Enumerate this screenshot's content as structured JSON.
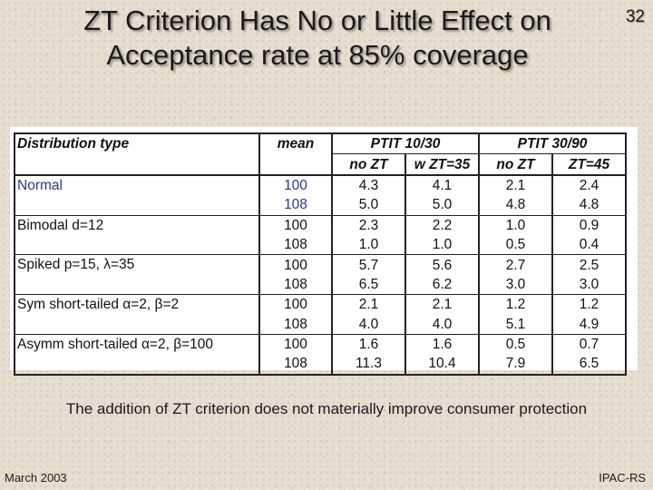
{
  "slide": {
    "title_line1": "ZT Criterion Has No or Little Effect on",
    "title_line2": "Acceptance rate at 85% coverage",
    "page_number": "32",
    "caption": "The addition of ZT criterion does not materially improve consumer protection",
    "footer_left": "March 2003",
    "footer_right": "IPAC-RS"
  },
  "table": {
    "header": {
      "distribution": "Distribution type",
      "mean": "mean",
      "group1": "PTIT 10/30",
      "group2": "PTIT 30/90",
      "sub": [
        "no ZT",
        "w ZT=35",
        "no ZT",
        "ZT=45"
      ]
    },
    "groups": [
      {
        "label": "Normal",
        "rows": [
          [
            "100",
            "4.3",
            "4.1",
            "2.1",
            "2.4"
          ],
          [
            "108",
            "5.0",
            "5.0",
            "4.8",
            "4.8"
          ]
        ]
      },
      {
        "label": "Bimodal d=12",
        "rows": [
          [
            "100",
            "2.3",
            "2.2",
            "1.0",
            "0.9"
          ],
          [
            "108",
            "1.0",
            "1.0",
            "0.5",
            "0.4"
          ]
        ]
      },
      {
        "label": "Spiked p=15, λ=35",
        "rows": [
          [
            "100",
            "5.7",
            "5.6",
            "2.7",
            "2.5"
          ],
          [
            "108",
            "6.5",
            "6.2",
            "3.0",
            "3.0"
          ]
        ]
      },
      {
        "label": "Sym short-tailed α=2, β=2",
        "rows": [
          [
            "100",
            "2.1",
            "2.1",
            "1.2",
            "1.2"
          ],
          [
            "108",
            "4.0",
            "4.0",
            "5.1",
            "4.9"
          ]
        ]
      },
      {
        "label": "Asymm short-tailed α=2, β=100",
        "rows": [
          [
            "100",
            "1.6",
            "1.6",
            "0.5",
            "0.7"
          ],
          [
            "108",
            "11.3",
            "10.4",
            "7.9",
            "6.5"
          ]
        ]
      }
    ]
  },
  "colors": {
    "highlight_text": "#2b3a8e",
    "background": "#e6dfd0"
  }
}
